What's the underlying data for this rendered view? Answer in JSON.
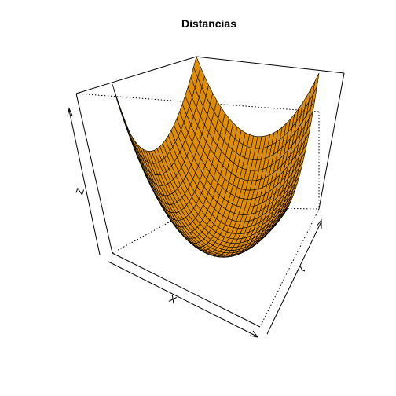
{
  "chart_data": {
    "type": "surface-3d",
    "title": "Distancias",
    "xlabel": "X",
    "ylabel": "Y",
    "zlabel": "Z",
    "function": "z = x^2 + y^2",
    "x_range": [
      -1,
      1
    ],
    "y_range": [
      -1,
      1
    ],
    "z_range": [
      0,
      2
    ],
    "grid_cells": 30,
    "surface_color": "#E08E00",
    "mesh_color": "#000000",
    "background": "#FFFFFF"
  }
}
